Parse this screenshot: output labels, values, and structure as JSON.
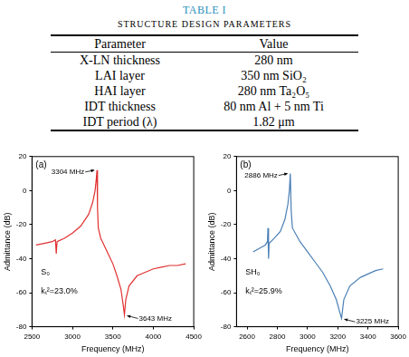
{
  "table": {
    "title": "TABLE I",
    "subtitle": "STRUCTURE DESIGN PARAMETERS",
    "header": [
      "Parameter",
      "Value"
    ],
    "rows": [
      [
        "X-LN thickness",
        "280 nm"
      ],
      [
        "LAI layer",
        "350 nm SiO₂"
      ],
      [
        "HAI layer",
        "280 nm Ta₂O₅"
      ],
      [
        "IDT thickness",
        "80 nm Al + 5 nm Ti"
      ],
      [
        "IDT period (λ)",
        "1.82 μm"
      ]
    ]
  },
  "chart_data": [
    {
      "type": "line",
      "panel": "(a)",
      "x_label": "Frequency (MHz)",
      "y_label": "Admittance (dB)",
      "color": "#e03030",
      "grid": false,
      "xlim": [
        2500,
        4500
      ],
      "xticks": [
        2500,
        3000,
        3500,
        4000,
        4500
      ],
      "ylim": [
        -80,
        20
      ],
      "yticks": [
        -80,
        -60,
        -40,
        -20,
        0,
        20
      ],
      "x": [
        2550,
        2650,
        2750,
        2790,
        2800,
        2810,
        2900,
        3000,
        3100,
        3200,
        3250,
        3280,
        3295,
        3304,
        3310,
        3320,
        3350,
        3400,
        3450,
        3500,
        3550,
        3600,
        3630,
        3643,
        3660,
        3700,
        3800,
        3900,
        4000,
        4100,
        4200,
        4300,
        4400
      ],
      "values": [
        -32,
        -31,
        -30,
        -29,
        -37,
        -30,
        -28,
        -25,
        -21,
        -14,
        -7,
        0,
        7,
        12,
        -10,
        -22,
        -28,
        -33,
        -38,
        -43,
        -50,
        -58,
        -68,
        -73,
        -64,
        -56,
        -50,
        -48,
        -46,
        -45,
        -44,
        -44,
        -43
      ],
      "annotations": [
        {
          "text": "3304 MHz",
          "x": 3304,
          "y": 12
        },
        {
          "text": "3643 MHz",
          "x": 3643,
          "y": -73
        }
      ],
      "notes": [
        "S₀",
        "kₜ²=23.0%"
      ]
    },
    {
      "type": "line",
      "panel": "(b)",
      "x_label": "Frequency (MHz)",
      "y_label": "Admittance (dB)",
      "color": "#4a7fb5",
      "grid": false,
      "xlim": [
        2530,
        3600
      ],
      "xticks": [
        2600,
        2800,
        3000,
        3200,
        3400,
        3600
      ],
      "ylim": [
        -80,
        20
      ],
      "yticks": [
        -80,
        -60,
        -40,
        -20,
        0,
        20
      ],
      "x": [
        2640,
        2680,
        2720,
        2735,
        2738,
        2742,
        2746,
        2780,
        2820,
        2850,
        2870,
        2880,
        2886,
        2892,
        2900,
        2950,
        3000,
        3050,
        3100,
        3150,
        3190,
        3215,
        3225,
        3240,
        3280,
        3350,
        3400,
        3450,
        3500
      ],
      "values": [
        -36,
        -34,
        -32,
        -30,
        -22,
        -40,
        -31,
        -28,
        -24,
        -17,
        -8,
        0,
        10,
        -12,
        -22,
        -30,
        -36,
        -42,
        -48,
        -56,
        -64,
        -72,
        -75,
        -64,
        -56,
        -51,
        -49,
        -47,
        -46
      ],
      "annotations": [
        {
          "text": "2886 MHz",
          "x": 2886,
          "y": 10
        },
        {
          "text": "3225 MHz",
          "x": 3225,
          "y": -75
        }
      ],
      "notes": [
        "SH₀",
        "kₜ²=25.9%"
      ]
    }
  ]
}
